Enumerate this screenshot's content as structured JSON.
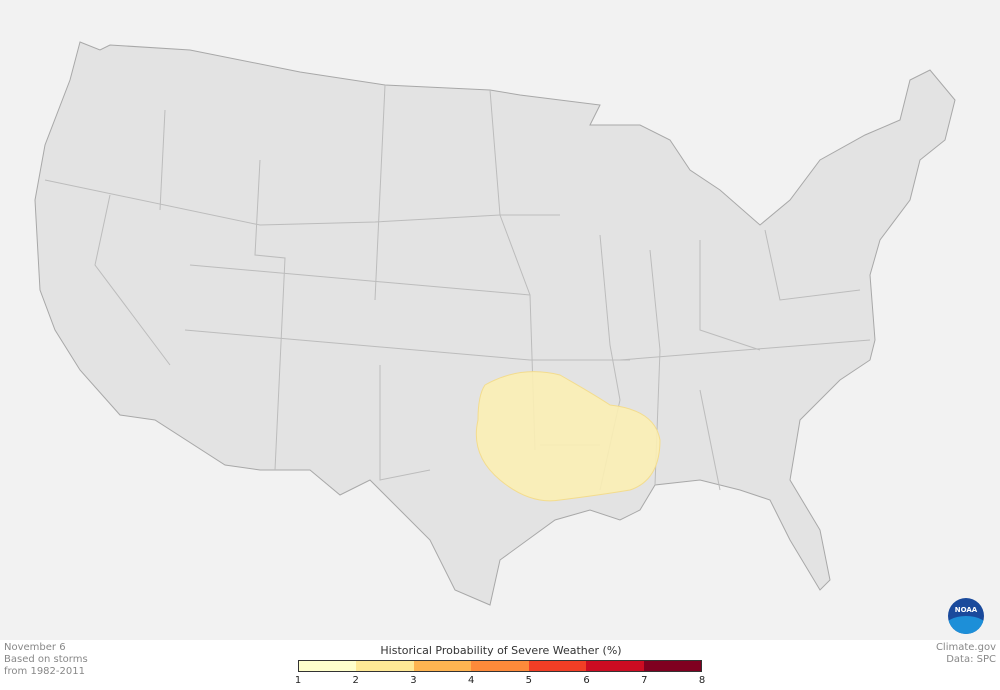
{
  "info": {
    "date": "November 6",
    "line2": "Based on storms",
    "line3": "from 1982-2011"
  },
  "credits": {
    "site": "Climate.gov",
    "data": "Data: SPC"
  },
  "logo": "NOAA",
  "legend": {
    "title": "Historical Probability of Severe Weather (%)",
    "colors": [
      "#ffffcc",
      "#ffe996",
      "#feb451",
      "#fd8a3a",
      "#f23e25",
      "#cc0c22",
      "#7f0020"
    ],
    "ticks": [
      "1",
      "2",
      "3",
      "4",
      "5",
      "6",
      "7",
      "8"
    ]
  },
  "map": {
    "land_color": "#e3e3e3",
    "border_color": "#a8a8a8",
    "probability_area_level": "1-2%",
    "probability_area_color": "#fbeeb4"
  }
}
